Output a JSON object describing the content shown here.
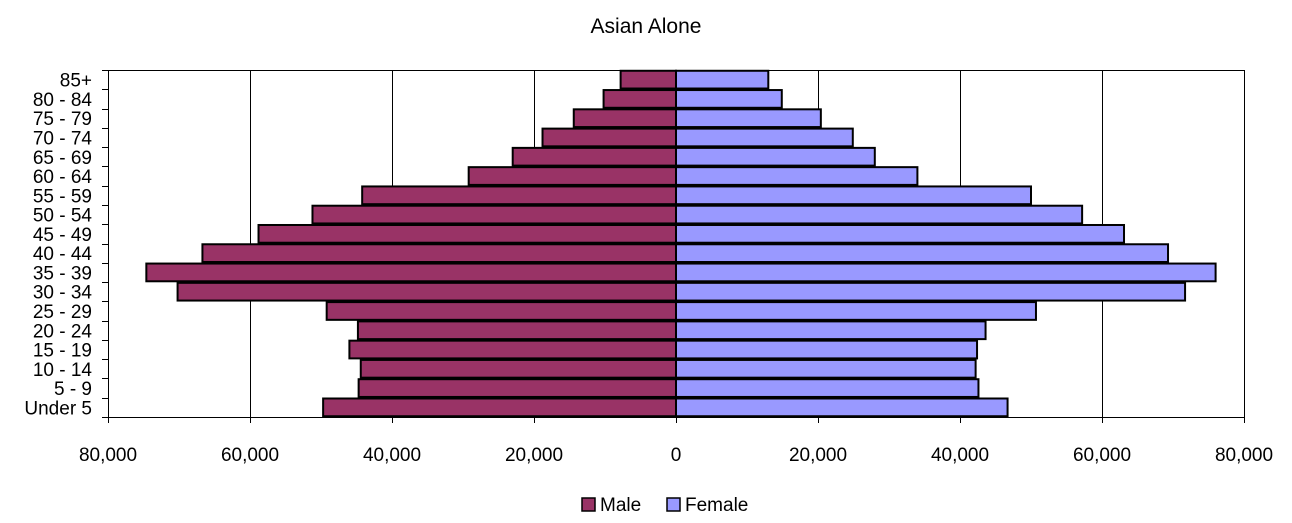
{
  "chart_data": {
    "type": "bar",
    "orientation": "horizontal",
    "layout": "population-pyramid",
    "title": "Asian Alone",
    "categories": [
      "Under 5",
      "5 - 9",
      "10 - 14",
      "15 - 19",
      "20 - 24",
      "25 - 29",
      "30 - 34",
      "35 - 39",
      "40 - 44",
      "45 - 49",
      "50 - 54",
      "55 - 59",
      "60 - 64",
      "65 - 69",
      "70 - 74",
      "75 - 79",
      "80 - 84",
      "85+"
    ],
    "series": [
      {
        "name": "Male",
        "color": "#993366",
        "values": [
          49700,
          44700,
          44400,
          46000,
          44800,
          49200,
          70200,
          74600,
          66700,
          58800,
          51200,
          44200,
          29200,
          23000,
          18800,
          14400,
          10200,
          7800
        ]
      },
      {
        "name": "Female",
        "color": "#9999ff",
        "values": [
          46700,
          42600,
          42200,
          42400,
          43600,
          50700,
          71700,
          76000,
          69300,
          63100,
          57200,
          50000,
          34000,
          28000,
          24900,
          20400,
          14900,
          13000
        ]
      }
    ],
    "xlim": [
      -80000,
      80000
    ],
    "x_ticks": [
      -80000,
      -60000,
      -40000,
      -20000,
      0,
      20000,
      40000,
      60000,
      80000
    ],
    "x_tick_labels": [
      "80,000",
      "60,000",
      "40,000",
      "20,000",
      "0",
      "20,000",
      "40,000",
      "60,000",
      "80,000"
    ],
    "grid": "vertical",
    "legend_position": "bottom",
    "xlabel": "",
    "ylabel": ""
  }
}
